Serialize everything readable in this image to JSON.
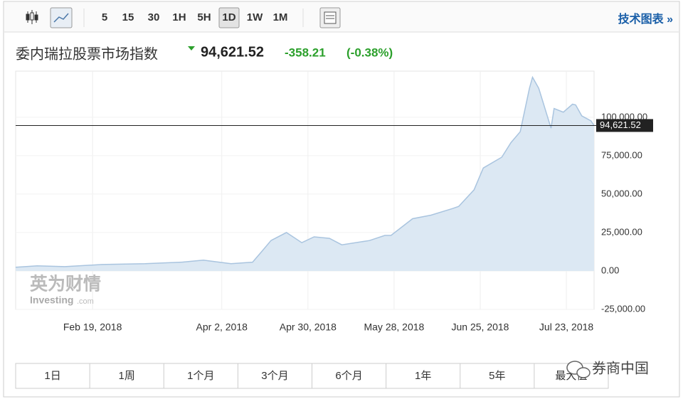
{
  "toolbar": {
    "intervals": [
      "5",
      "15",
      "30",
      "1H",
      "5H",
      "1D",
      "1W",
      "1M"
    ],
    "active": "1D",
    "link": "技术图表 »"
  },
  "header": {
    "title": "委内瑞拉股票市场指数",
    "price": "94,621.52",
    "change": "-358.21",
    "change_pct": "(-0.38%)"
  },
  "chart_data": {
    "type": "area",
    "x": [
      "2018-01-25",
      "2018-02-01",
      "2018-02-10",
      "2018-02-22",
      "2018-03-08",
      "2018-03-20",
      "2018-03-27",
      "2018-04-05",
      "2018-04-12",
      "2018-04-15",
      "2018-04-18",
      "2018-04-23",
      "2018-04-28",
      "2018-05-02",
      "2018-05-07",
      "2018-05-11",
      "2018-05-20",
      "2018-05-25",
      "2018-05-27",
      "2018-06-03",
      "2018-06-09",
      "2018-06-16",
      "2018-06-18",
      "2018-06-23",
      "2018-06-26",
      "2018-07-02",
      "2018-07-05",
      "2018-07-08",
      "2018-07-11",
      "2018-07-12",
      "2018-07-14",
      "2018-07-18",
      "2018-07-19",
      "2018-07-22",
      "2018-07-25",
      "2018-07-26",
      "2018-07-28",
      "2018-07-31",
      "2018-08-01"
    ],
    "values": [
      2400,
      3300,
      2800,
      4200,
      4700,
      5700,
      7000,
      4700,
      5700,
      12700,
      19800,
      25000,
      18400,
      22200,
      21200,
      17000,
      19800,
      23100,
      23100,
      34000,
      36300,
      40600,
      42000,
      52800,
      67000,
      74000,
      83500,
      90600,
      118900,
      126000,
      118900,
      92900,
      105700,
      103300,
      108500,
      108000,
      100900,
      97600,
      94621.52
    ],
    "color": "#a9c4df",
    "fill": "#dce8f3",
    "xlim": [
      "2018-01-25",
      "2018-08-01"
    ],
    "xticks": [
      {
        "value": "2018-02-19",
        "label": "Feb 19, 2018"
      },
      {
        "value": "2018-04-02",
        "label": "Apr 2, 2018"
      },
      {
        "value": "2018-04-30",
        "label": "Apr 30, 2018"
      },
      {
        "value": "2018-05-28",
        "label": "May 28, 2018"
      },
      {
        "value": "2018-06-25",
        "label": "Jun 25, 2018"
      },
      {
        "value": "2018-07-23",
        "label": "Jul 23, 2018"
      }
    ],
    "ylim": [
      -25000,
      130000
    ],
    "yticks": [
      {
        "value": -25000,
        "label": "-25,000.00"
      },
      {
        "value": 0,
        "label": "0.00"
      },
      {
        "value": 25000,
        "label": "25,000.00"
      },
      {
        "value": 50000,
        "label": "50,000.00"
      },
      {
        "value": 75000,
        "label": "75,000.00"
      },
      {
        "value": 100000,
        "label": "100,000.00"
      }
    ],
    "current": {
      "value": 94621.52,
      "label": "94,621.52"
    },
    "grid": true
  },
  "ranges": [
    "1日",
    "1周",
    "1个月",
    "3个月",
    "6个月",
    "1年",
    "5年",
    "最大值"
  ],
  "watermark": {
    "brand_cn": "英为财情",
    "brand_en": "Investing",
    "brand_suffix": ".com",
    "source": "券商中国"
  }
}
